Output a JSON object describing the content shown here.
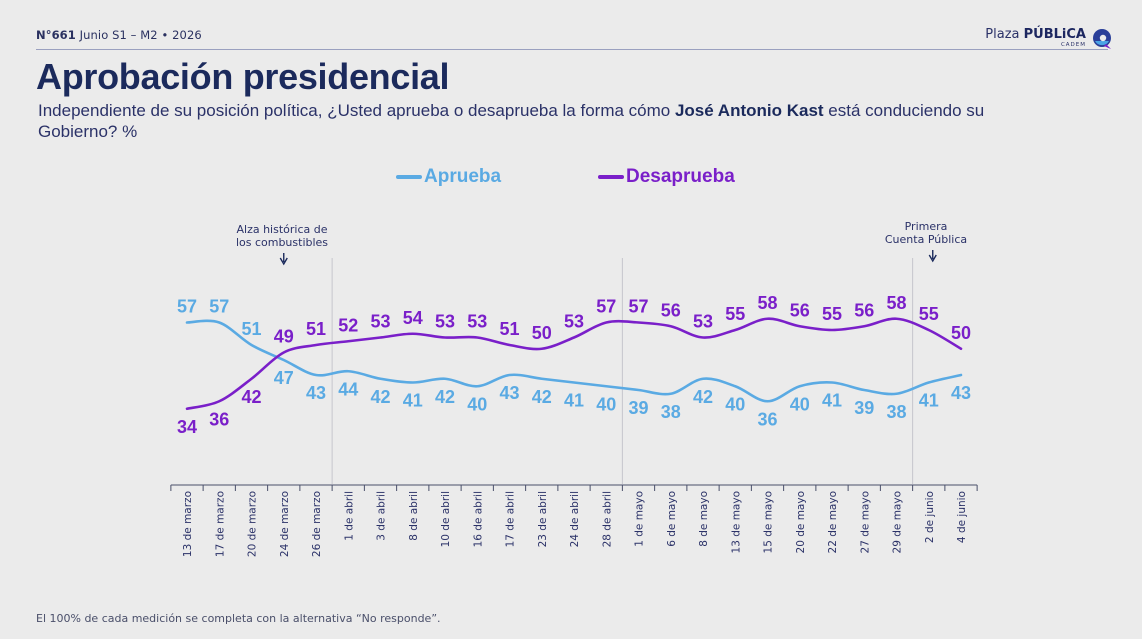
{
  "header": {
    "issue_number": "N°661",
    "issue_detail": "Junio S1 – M2 • 2026",
    "brand_prefix": "Plaza",
    "brand_name": "PÚBLiCA",
    "brand_sub": "CADEM"
  },
  "title": "Aprobación presidencial",
  "subtitle": {
    "part1": "Independiente de su posición política, ¿Usted aprueba o desaprueba la forma cómo ",
    "name": "José Antonio Kast",
    "part2": " está conduciendo su Gobierno? %"
  },
  "annotations": {
    "fuel": {
      "line1": "Alza histórica de",
      "line2": "los combustibles"
    },
    "account": {
      "line1": "Primera",
      "line2": "Cuenta Pública"
    }
  },
  "footnote": "El 100% de cada medición se completa con la alternativa “No responde”.",
  "colors": {
    "aprueba": "#5aaae3",
    "desaprueba": "#7a1fc9",
    "text": "#1b2a5c"
  },
  "chart_data": {
    "type": "line",
    "categories": [
      "13 de marzo",
      "17 de marzo",
      "20 de marzo",
      "24 de marzo",
      "26 de marzo",
      "1 de abril",
      "3 de abril",
      "8 de abril",
      "10 de abril",
      "16 de abril",
      "17 de abril",
      "23 de abril",
      "24 de abril",
      "28 de abril",
      "1 de mayo",
      "6 de mayo",
      "8 de mayo",
      "13 de mayo",
      "15 de mayo",
      "20 de mayo",
      "22 de mayo",
      "27 de mayo",
      "29 de mayo",
      "2 de junio",
      "4 de junio"
    ],
    "series": [
      {
        "name": "Aprueba",
        "color": "#5aaae3",
        "values": [
          57,
          57,
          51,
          47,
          43,
          44,
          42,
          41,
          42,
          40,
          43,
          42,
          41,
          40,
          39,
          38,
          42,
          40,
          36,
          40,
          41,
          39,
          38,
          41,
          43
        ]
      },
      {
        "name": "Desaprueba",
        "color": "#7a1fc9",
        "values": [
          34,
          36,
          42,
          49,
          51,
          52,
          53,
          54,
          53,
          53,
          51,
          50,
          53,
          57,
          57,
          56,
          53,
          55,
          58,
          56,
          55,
          56,
          58,
          55,
          50
        ]
      }
    ],
    "ylim": [
      15,
      75
    ],
    "grid": false,
    "legend_position": "top-center",
    "separators_after": [
      "26 de marzo",
      "28 de abril",
      "29 de mayo"
    ],
    "annotation_marks": [
      "24 de marzo",
      "2 de junio"
    ]
  }
}
